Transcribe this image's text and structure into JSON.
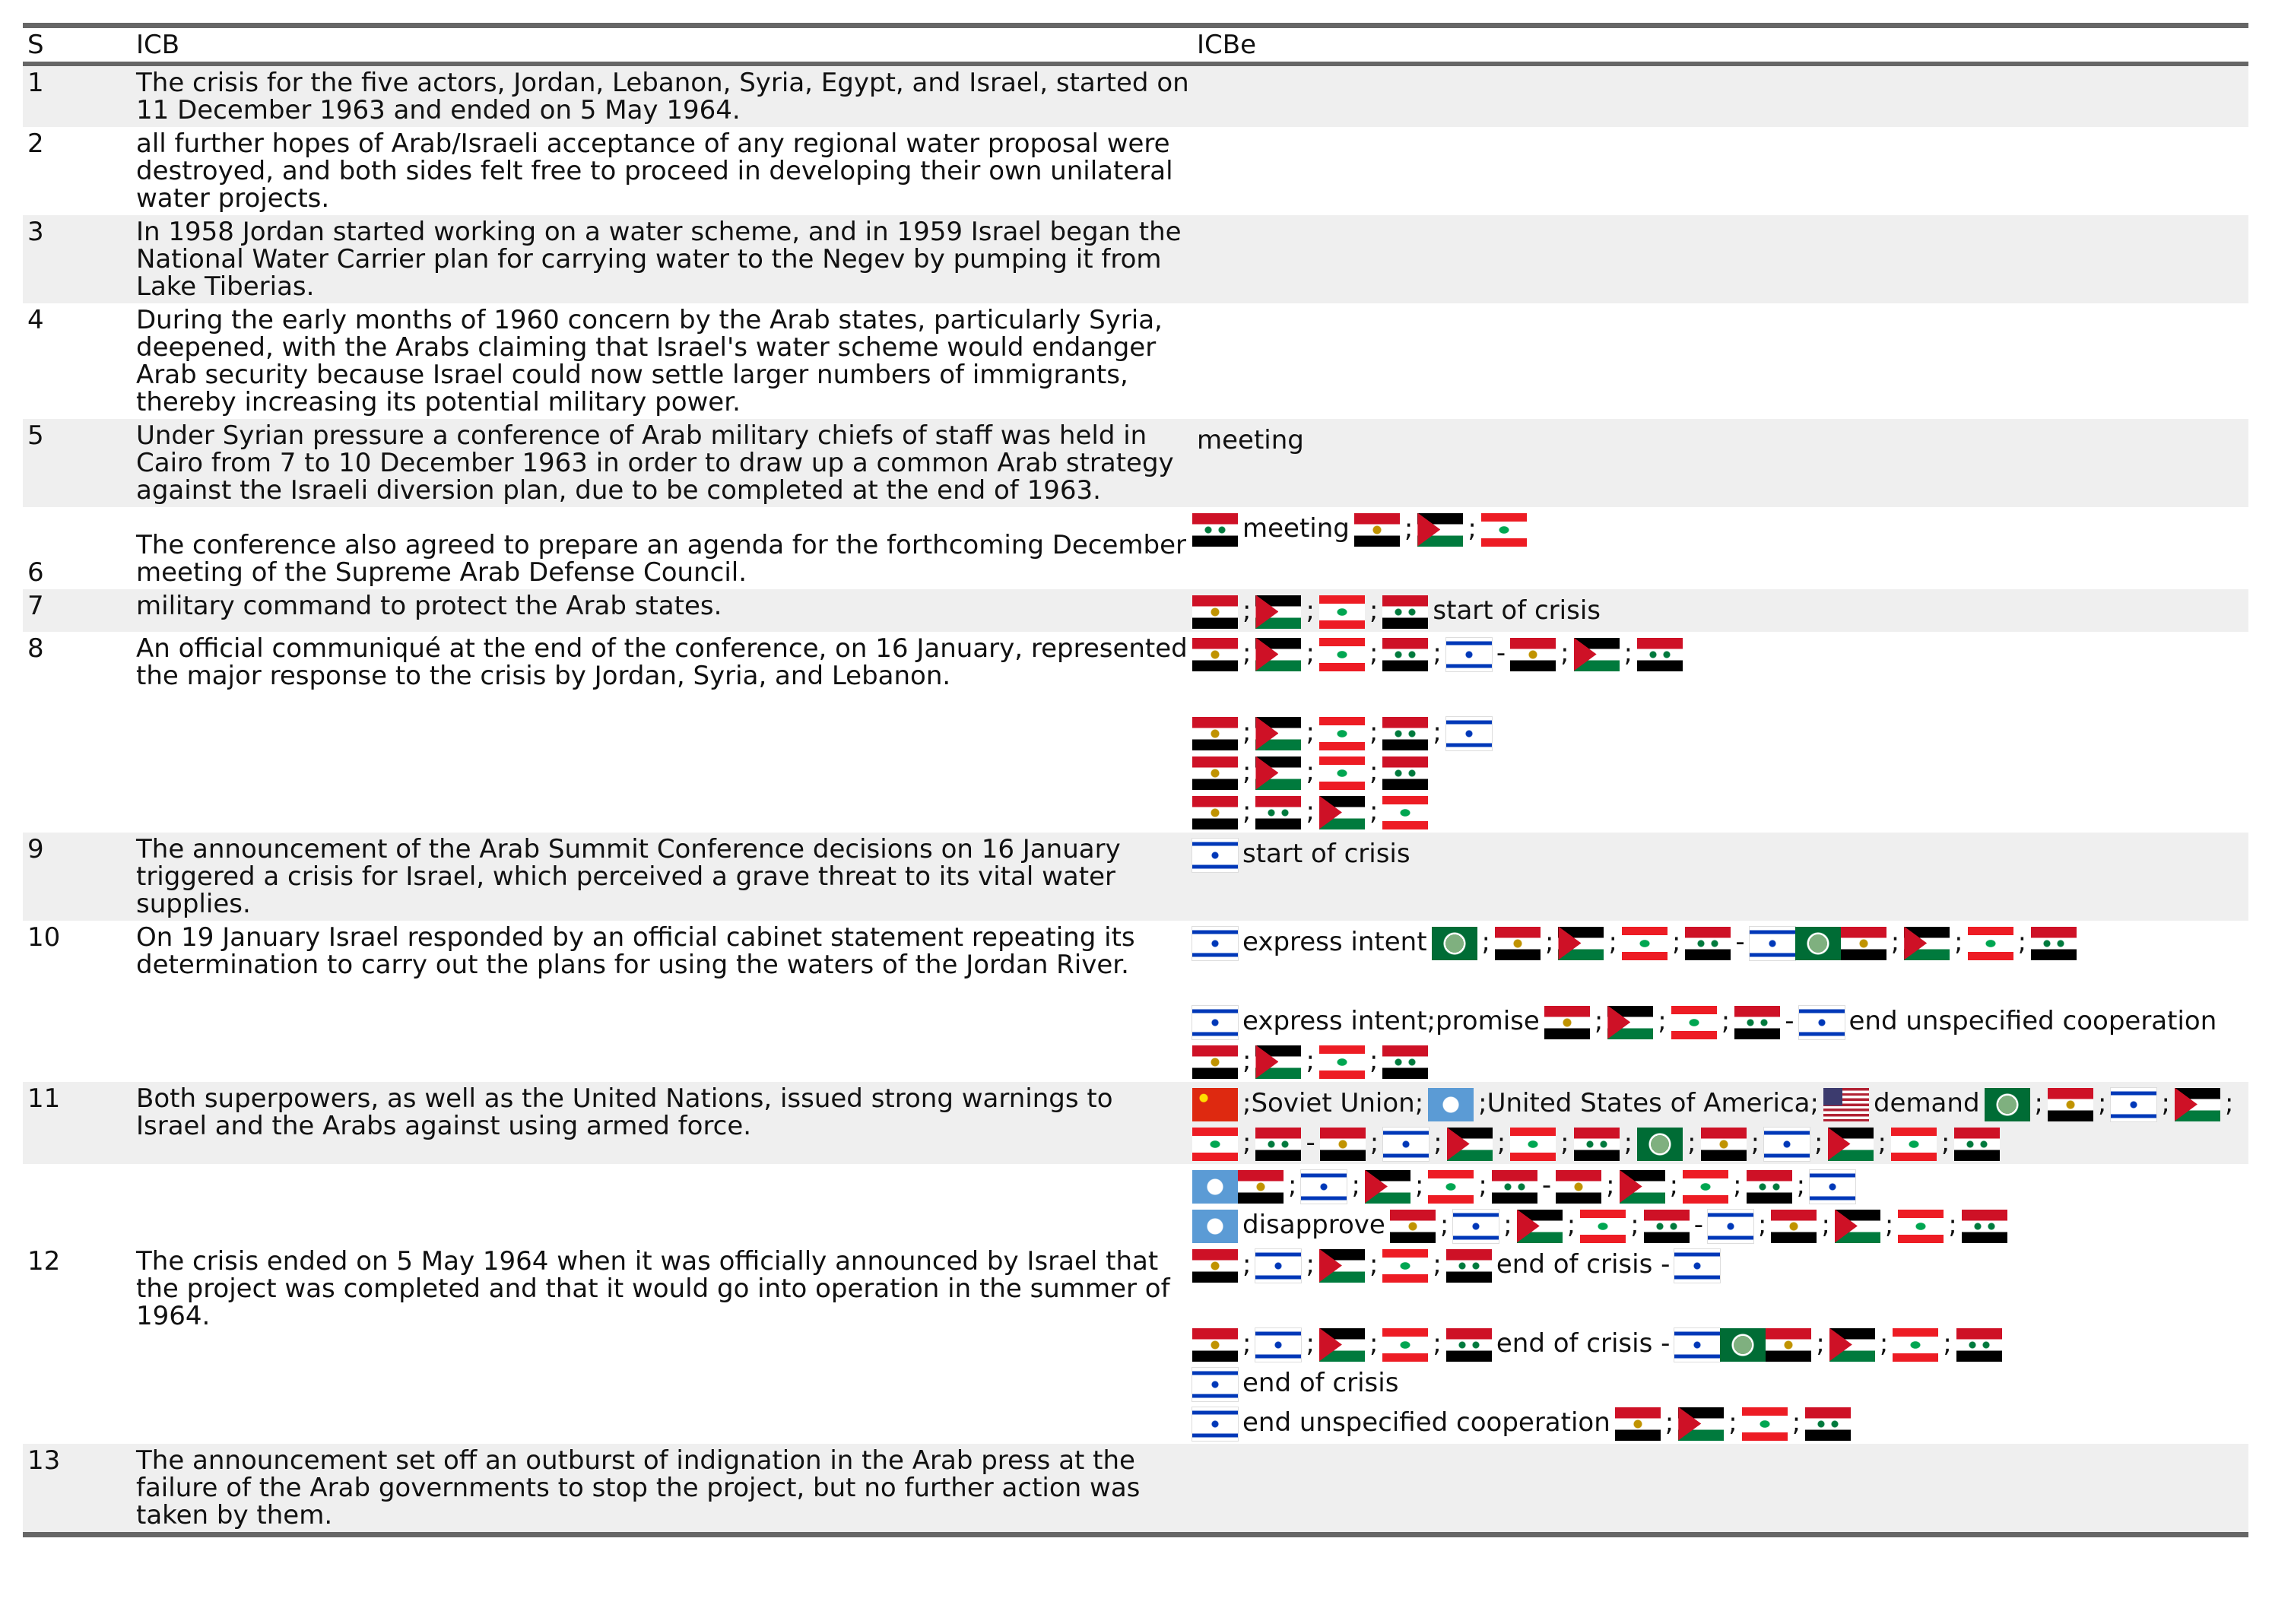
{
  "table": {
    "header": [
      "S",
      "ICB",
      "ICBe"
    ],
    "rows": [
      {
        "s": "1",
        "icb": "The crisis for the five actors, Jordan, Lebanon, Syria, Egypt, and Israel, started on 11 December 1963 and ended on 5 May 1964."
      },
      {
        "s": "2",
        "icb": "all further hopes of Arab/Israeli acceptance of any regional water proposal were destroyed, and both sides felt free to proceed in developing their own unilateral water projects."
      },
      {
        "s": "3",
        "icb": "In 1958 Jordan started working on a water scheme, and in 1959 Israel began the National Water Carrier plan for carrying water to the Negev by pumping it from Lake Tiberias."
      },
      {
        "s": "4",
        "icb": "During the early months of 1960 concern by the Arab states, particularly Syria, deepened, with the Arabs claiming that Israel's water scheme would endanger Arab security because Israel could now settle larger numbers of immigrants, thereby increasing its potential military power."
      },
      {
        "s": "5",
        "icb": "Under Syrian pressure a conference of Arab military chiefs of staff was held in Cairo from 7 to 10 December 1963 in order to draw up a common Arab strategy against the Israeli diversion plan, due to be completed at the end of 1963.",
        "icbe": [
          [
            "meeting"
          ]
        ]
      },
      {
        "s": "6",
        "icb": "The conference also agreed to prepare an agenda for the forthcoming December meeting of the Supreme Arab Defense Council.",
        "icbe": [
          [
            "meeting",
            ";",
            ";"
          ]
        ]
      },
      {
        "s": "7",
        "icb": "military command to protect the Arab states.",
        "icbe": [
          [
            ";",
            ";",
            ";",
            "start of crisis"
          ]
        ]
      },
      {
        "s": "8",
        "icb": "An official communiqué at the end of the conference, on 16 January, represented the major response to the crisis by Jordan, Syria, and Lebanon.",
        "icbe": [
          [
            ";",
            ";",
            ";",
            ";",
            "-",
            ";",
            ";"
          ],
          [
            ";",
            ";",
            ";",
            ";"
          ],
          [
            ";",
            ";",
            ";"
          ],
          [
            ";",
            ";",
            ";"
          ]
        ]
      },
      {
        "s": "9",
        "icb": "The announcement of the Arab Summit Conference decisions on 16 January triggered a crisis for Israel, which perceived a grave threat to its vital water supplies.",
        "icbe": [
          [
            "start of crisis"
          ]
        ]
      },
      {
        "s": "10",
        "icb": "On 19 January Israel responded by an official cabinet statement repeating its determination to carry out the plans for using the waters of the Jordan River.",
        "icbe": [
          [
            "express intent",
            ";",
            ";",
            ";",
            ";",
            "-",
            ";",
            ";",
            ";"
          ],
          [
            "express intent;promise",
            ";",
            ";",
            ";",
            "-",
            "end unspecified cooperation",
            ";",
            ";",
            ";"
          ]
        ]
      },
      {
        "s": "11",
        "icb": "Both superpowers, as well as the United Nations, issued strong warnings to Israel and the Arabs against using armed force.",
        "icbe": [
          [
            ";Soviet Union;",
            ";United States of America;",
            "demand",
            ";",
            ";",
            ";",
            ";",
            ";",
            "-",
            ";",
            ";",
            ";",
            ";",
            ";",
            ";",
            ";",
            ";",
            ";",
            ";"
          ]
        ]
      },
      {
        "s": "12",
        "icb": "The crisis ended on 5 May 1964 when it was officially announced by Israel that the project was completed and that it would go into operation in the summer of 1964.",
        "icbe": [
          [
            ";",
            ";",
            ";",
            ";",
            "-",
            ";",
            ";",
            ";",
            ";"
          ],
          [
            "disapprove",
            ";",
            ";",
            ";",
            ";",
            "-",
            ";",
            ";",
            ";",
            ";"
          ],
          [
            ";",
            ";",
            ";",
            ";",
            "end of crisis -"
          ],
          [
            ";",
            ";",
            ";",
            ";",
            "end of crisis -",
            ";",
            ";",
            ";"
          ],
          [
            "end of crisis"
          ],
          [
            "end unspecified cooperation",
            ";",
            ";",
            ";"
          ]
        ]
      },
      {
        "s": "13",
        "icb": "The announcement set off an outburst of indignation in the Arab press at the failure of the Arab governments to stop the project, but no further action was taken by them."
      }
    ]
  }
}
